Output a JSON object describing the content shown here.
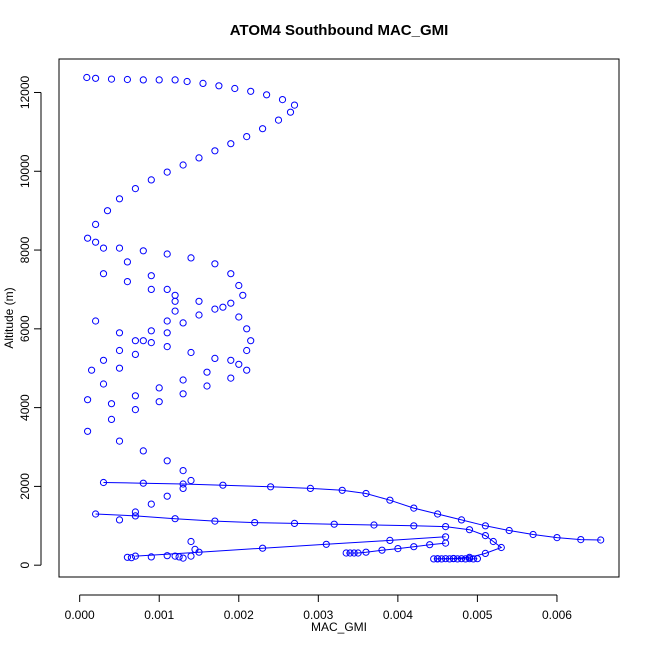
{
  "chart_data": {
    "type": "scatter",
    "title": "ATOM4 Southbound MAC_GMI",
    "xlabel": "MAC_GMI",
    "ylabel": "Altitude (m)",
    "xlim": [
      -0.00026,
      0.00678
    ],
    "ylim": [
      -300,
      12850
    ],
    "x_ticks": [
      0,
      0.001,
      0.002,
      0.003,
      0.004,
      0.005,
      0.006
    ],
    "x_tick_labels": [
      "0.000",
      "0.001",
      "0.002",
      "0.003",
      "0.004",
      "0.005",
      "0.006"
    ],
    "y_ticks": [
      0,
      2000,
      4000,
      6000,
      8000,
      10000,
      12000
    ],
    "y_tick_labels": [
      "0",
      "2000",
      "4000",
      "6000",
      "8000",
      "10000",
      "12000"
    ],
    "grid": false,
    "legend": "none",
    "marker": "open-circle",
    "color": "#0000ff",
    "series": [
      {
        "points": [
          [
            9e-05,
            12380
          ],
          [
            0.0002,
            12360
          ],
          [
            0.0004,
            12340
          ],
          [
            0.0006,
            12330
          ],
          [
            0.0008,
            12320
          ],
          [
            0.001,
            12320
          ],
          [
            0.0012,
            12320
          ],
          [
            0.00135,
            12280
          ],
          [
            0.00155,
            12230
          ],
          [
            0.00175,
            12170
          ],
          [
            0.00195,
            12100
          ],
          [
            0.00215,
            12030
          ],
          [
            0.00235,
            11940
          ],
          [
            0.00255,
            11820
          ],
          [
            0.0027,
            11680
          ],
          [
            0.00265,
            11500
          ],
          [
            0.0025,
            11300
          ],
          [
            0.0023,
            11080
          ],
          [
            0.0021,
            10880
          ],
          [
            0.0019,
            10700
          ],
          [
            0.0017,
            10520
          ],
          [
            0.0015,
            10340
          ],
          [
            0.0013,
            10160
          ],
          [
            0.0011,
            9980
          ],
          [
            0.0009,
            9780
          ],
          [
            0.0007,
            9560
          ],
          [
            0.0005,
            9300
          ],
          [
            0.00035,
            9000
          ],
          [
            0.0002,
            8650
          ],
          [
            0.0001,
            8300
          ]
        ],
        "connected": false
      },
      {
        "points": [
          [
            0.0002,
            8200
          ],
          [
            0.0005,
            8050
          ],
          [
            0.0008,
            7980
          ],
          [
            0.0011,
            7900
          ],
          [
            0.0014,
            7800
          ],
          [
            0.0017,
            7650
          ],
          [
            0.0019,
            7400
          ],
          [
            0.002,
            7100
          ],
          [
            0.00205,
            6850
          ],
          [
            0.0019,
            6650
          ],
          [
            0.0017,
            6500
          ],
          [
            0.0015,
            6350
          ],
          [
            0.0013,
            6150
          ],
          [
            0.0011,
            5900
          ],
          [
            0.0009,
            5650
          ],
          [
            0.0007,
            5350
          ],
          [
            0.0005,
            5000
          ],
          [
            0.0003,
            4600
          ],
          [
            0.0001,
            4200
          ]
        ],
        "connected": false
      },
      {
        "points": [
          [
            0.0003,
            8050
          ],
          [
            0.0006,
            7700
          ],
          [
            0.0009,
            7350
          ],
          [
            0.0011,
            7000
          ],
          [
            0.0012,
            6700
          ],
          [
            0.0012,
            6450
          ],
          [
            0.0011,
            6200
          ],
          [
            0.0009,
            5950
          ],
          [
            0.0007,
            5700
          ],
          [
            0.0005,
            5450
          ],
          [
            0.0003,
            5200
          ],
          [
            0.00015,
            4950
          ]
        ],
        "connected": false
      },
      {
        "points": [
          [
            0.0003,
            7400
          ],
          [
            0.0006,
            7200
          ],
          [
            0.0009,
            7000
          ],
          [
            0.0012,
            6850
          ],
          [
            0.0015,
            6700
          ],
          [
            0.0018,
            6550
          ],
          [
            0.002,
            6300
          ],
          [
            0.0021,
            6000
          ],
          [
            0.00215,
            5700
          ],
          [
            0.0021,
            5450
          ],
          [
            0.0019,
            5200
          ],
          [
            0.0016,
            4900
          ],
          [
            0.0013,
            4700
          ],
          [
            0.001,
            4500
          ],
          [
            0.0007,
            4300
          ],
          [
            0.0004,
            4100
          ]
        ],
        "connected": false
      },
      {
        "points": [
          [
            0.0002,
            6200
          ],
          [
            0.0005,
            5900
          ],
          [
            0.0008,
            5700
          ],
          [
            0.0011,
            5550
          ],
          [
            0.0014,
            5400
          ],
          [
            0.0017,
            5250
          ],
          [
            0.002,
            5100
          ],
          [
            0.0021,
            4950
          ],
          [
            0.0019,
            4750
          ],
          [
            0.0016,
            4550
          ],
          [
            0.0013,
            4350
          ],
          [
            0.001,
            4150
          ],
          [
            0.0007,
            3950
          ],
          [
            0.0004,
            3700
          ],
          [
            0.0001,
            3400
          ]
        ],
        "connected": false
      },
      {
        "points": [
          [
            0.0005,
            3150
          ],
          [
            0.0008,
            2900
          ],
          [
            0.0011,
            2650
          ],
          [
            0.0013,
            2400
          ],
          [
            0.0014,
            2150
          ],
          [
            0.0013,
            1950
          ],
          [
            0.0011,
            1750
          ],
          [
            0.0009,
            1550
          ],
          [
            0.0007,
            1350
          ],
          [
            0.0005,
            1150
          ]
        ],
        "connected": false
      },
      {
        "points": [
          [
            0.0003,
            2100
          ],
          [
            0.0008,
            2080
          ],
          [
            0.0013,
            2060
          ],
          [
            0.0018,
            2030
          ],
          [
            0.0024,
            1990
          ],
          [
            0.0029,
            1950
          ],
          [
            0.0033,
            1900
          ],
          [
            0.0036,
            1820
          ],
          [
            0.0039,
            1650
          ],
          [
            0.0042,
            1450
          ],
          [
            0.0045,
            1300
          ],
          [
            0.0048,
            1150
          ],
          [
            0.0051,
            1000
          ],
          [
            0.0054,
            880
          ],
          [
            0.0057,
            780
          ],
          [
            0.006,
            700
          ],
          [
            0.0063,
            650
          ],
          [
            0.00655,
            640
          ]
        ],
        "connected": true
      },
      {
        "points": [
          [
            0.0002,
            1300
          ],
          [
            0.0007,
            1250
          ],
          [
            0.0012,
            1180
          ],
          [
            0.0017,
            1120
          ],
          [
            0.0022,
            1080
          ],
          [
            0.0027,
            1060
          ],
          [
            0.0032,
            1040
          ],
          [
            0.0037,
            1020
          ],
          [
            0.0042,
            1000
          ],
          [
            0.0046,
            980
          ],
          [
            0.0049,
            900
          ],
          [
            0.0051,
            750
          ],
          [
            0.0052,
            600
          ],
          [
            0.0053,
            450
          ],
          [
            0.0051,
            300
          ],
          [
            0.0049,
            200
          ],
          [
            0.0047,
            170
          ],
          [
            0.0045,
            160
          ]
        ],
        "connected": true
      },
      {
        "points": [
          [
            0.00335,
            310
          ],
          [
            0.0034,
            310
          ],
          [
            0.00345,
            310
          ],
          [
            0.0035,
            310
          ],
          [
            0.0036,
            330
          ],
          [
            0.0038,
            380
          ],
          [
            0.004,
            420
          ],
          [
            0.0042,
            470
          ],
          [
            0.0044,
            520
          ],
          [
            0.0046,
            560
          ]
        ],
        "connected": true
      },
      {
        "points": [
          [
            0.00445,
            160
          ],
          [
            0.0045,
            165
          ],
          [
            0.00455,
            160
          ],
          [
            0.0046,
            165
          ],
          [
            0.00465,
            160
          ],
          [
            0.0047,
            165
          ],
          [
            0.00475,
            160
          ],
          [
            0.0048,
            165
          ],
          [
            0.00485,
            160
          ],
          [
            0.0049,
            165
          ],
          [
            0.00495,
            160
          ],
          [
            0.005,
            165
          ]
        ],
        "connected": true
      },
      {
        "points": [
          [
            0.0006,
            200
          ],
          [
            0.00065,
            190
          ],
          [
            0.0009,
            210
          ],
          [
            0.0011,
            240
          ],
          [
            0.0012,
            230
          ],
          [
            0.00125,
            210
          ],
          [
            0.0013,
            180
          ],
          [
            0.0014,
            230
          ],
          [
            0.00145,
            400
          ],
          [
            0.0014,
            600
          ]
        ],
        "connected": false
      },
      {
        "points": [
          [
            0.0007,
            230
          ],
          [
            0.0015,
            330
          ],
          [
            0.0023,
            430
          ],
          [
            0.0031,
            530
          ],
          [
            0.0039,
            630
          ],
          [
            0.0046,
            720
          ]
        ],
        "connected": true
      }
    ]
  }
}
